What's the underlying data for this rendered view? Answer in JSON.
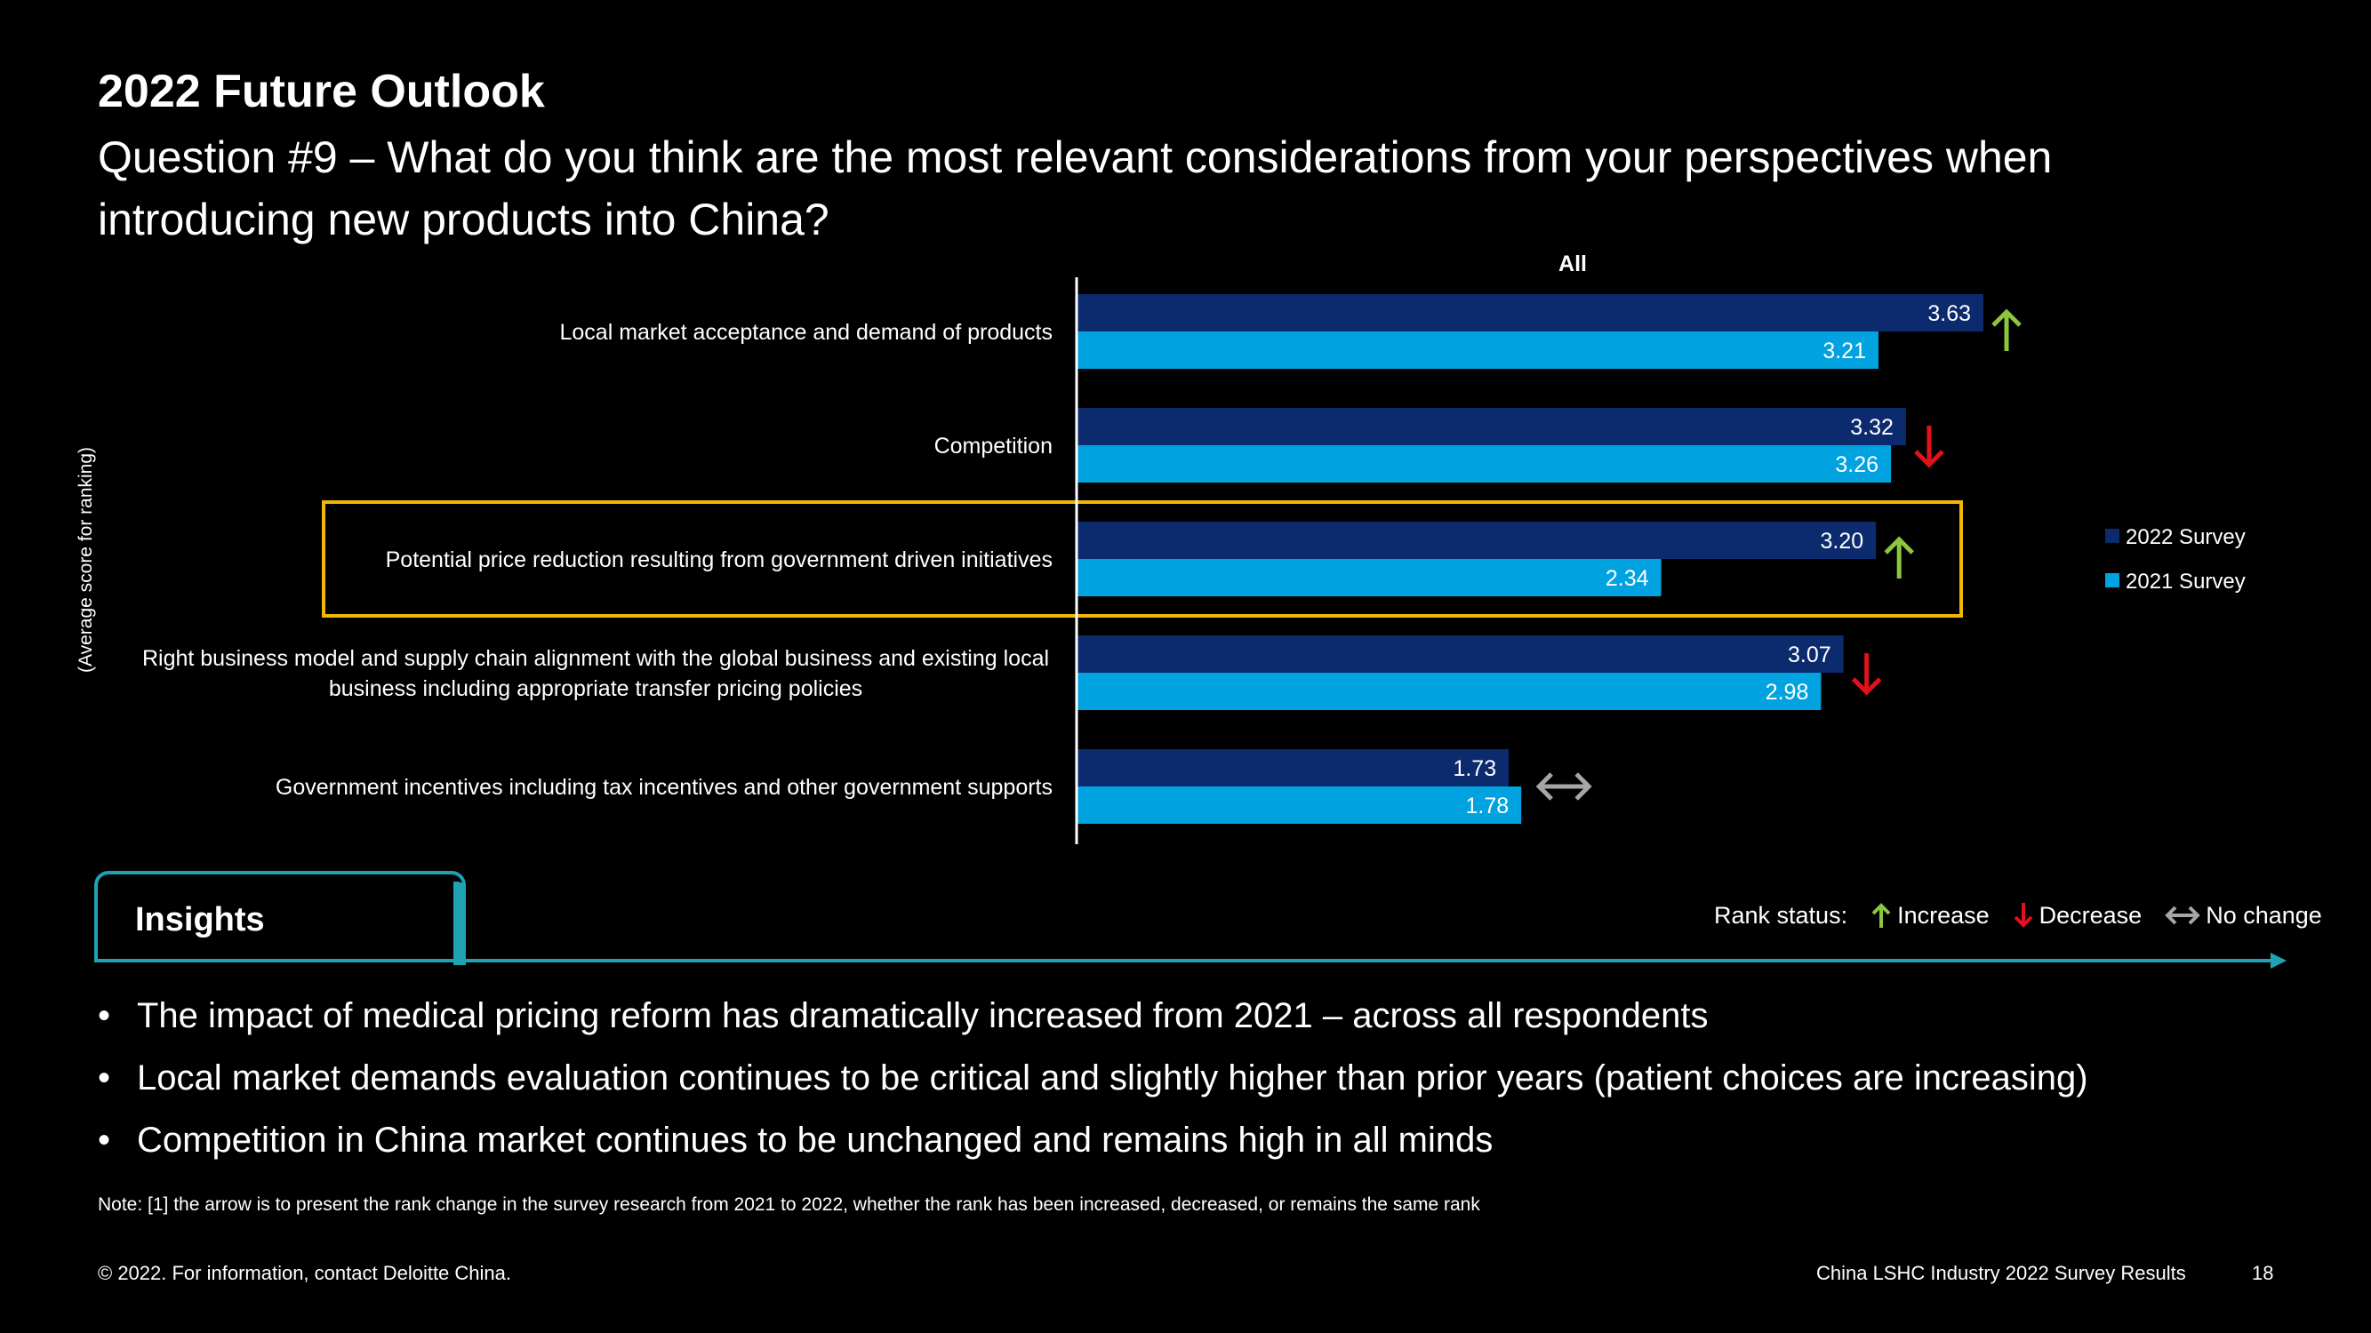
{
  "title": "2022 Future Outlook",
  "question": "Question #9 – What do you think are the most relevant considerations from your perspectives when introducing new products into China?",
  "colors": {
    "series_2022": "#0c2a6e",
    "series_2021": "#00a3e0",
    "highlight_box": "#f2b705",
    "increase": "#8cc63f",
    "decrease": "#e3111b",
    "no_change": "#a6a6a6",
    "accent_teal": "#1fa3b4"
  },
  "chart_data": {
    "type": "bar",
    "orientation": "horizontal",
    "title": "All",
    "ylabel": "(Average score for ranking)",
    "categories": [
      "Local market acceptance and demand of products",
      "Competition",
      "Potential price reduction resulting from government driven initiatives",
      "Right business model and supply chain alignment with the global business and existing local business including appropriate transfer pricing policies",
      "Government incentives including tax incentives and other government supports"
    ],
    "category_lines": [
      [
        "Local market acceptance and demand of products"
      ],
      [
        "Competition"
      ],
      [
        "Potential price reduction resulting from government driven initiatives"
      ],
      [
        "Right business model and supply chain alignment with the global business and existing local",
        "business including appropriate transfer pricing policies"
      ],
      [
        "Government incentives including tax incentives and other government supports"
      ]
    ],
    "series": [
      {
        "name": "2022 Survey",
        "values": [
          3.63,
          3.32,
          3.2,
          3.07,
          1.73
        ],
        "labels": [
          "3.63",
          "3.32",
          "3.20",
          "3.07",
          "1.73"
        ]
      },
      {
        "name": "2021 Survey",
        "values": [
          3.21,
          3.26,
          2.34,
          2.98,
          1.78
        ],
        "labels": [
          "3.21",
          "3.26",
          "2.34",
          "2.98",
          "1.78"
        ]
      }
    ],
    "rank_change": [
      "increase",
      "decrease",
      "increase",
      "decrease",
      "no_change"
    ],
    "highlighted_category_index": 2,
    "xlim": [
      0,
      4.5
    ],
    "legend_position": "right",
    "grid": false
  },
  "insights": {
    "label": "Insights",
    "rank_status_label": "Rank status:",
    "rank_items": [
      "Increase",
      "Decrease",
      "No change"
    ],
    "bullets": [
      "The impact of medical pricing reform has dramatically increased from 2021 – across all respondents",
      "Local market demands evaluation continues to be critical and slightly higher than prior years (patient choices are increasing)",
      "Competition in China market continues to be unchanged and remains high in all minds"
    ]
  },
  "note": "Note: [1] the arrow is to present the rank change in the survey research from 2021 to 2022, whether the rank has been increased, decreased, or remains the same rank",
  "footer": {
    "copyright": "© 2022. For information, contact Deloitte China.",
    "report": "China LSHC Industry 2022 Survey Results",
    "page": "18"
  }
}
